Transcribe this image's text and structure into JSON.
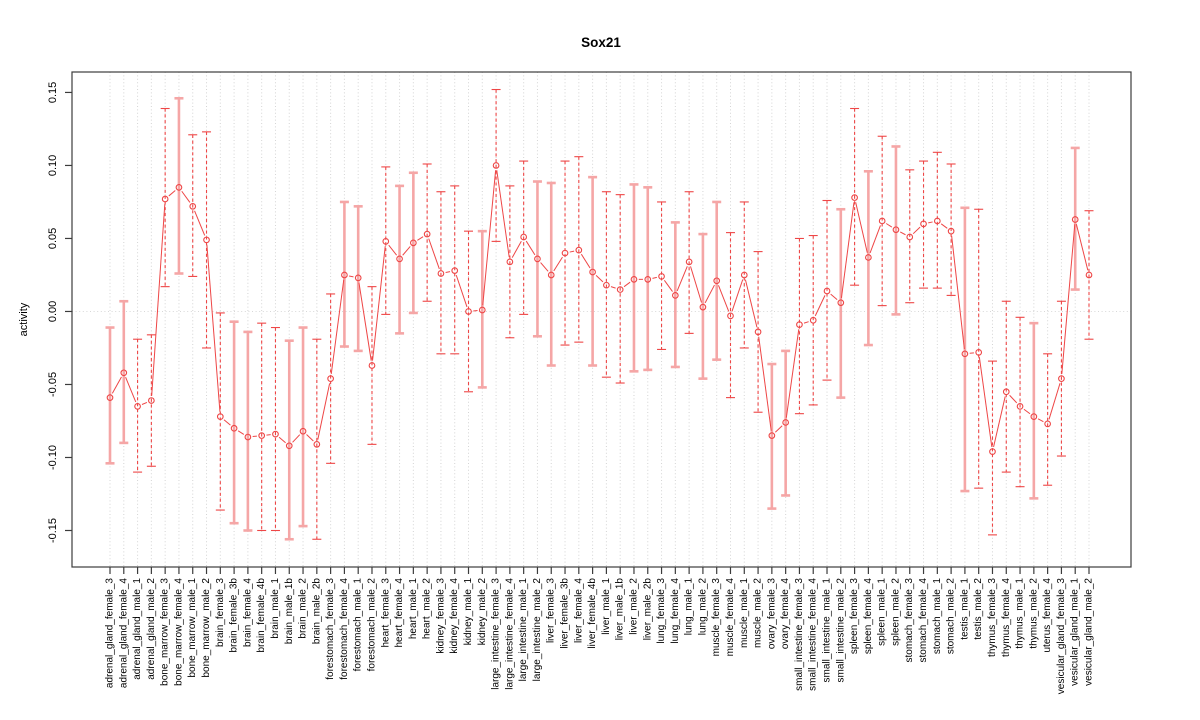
{
  "chart_data": {
    "type": "line",
    "title": "Sox21",
    "xlabel": "",
    "ylabel": "activity",
    "legend": "none",
    "grid": "vertical dotted line per category; dotted horizontal line at y=0",
    "marker": "open-circle",
    "ylim": [
      -0.175,
      0.164
    ],
    "yticks": [
      -0.15,
      -0.1,
      -0.05,
      0.0,
      0.05,
      0.1,
      0.15
    ],
    "ytick_labels": [
      "-0.15",
      "-0.10",
      "-0.05",
      "0.00",
      "0.05",
      "0.10",
      "0.15"
    ],
    "colors": {
      "series_red": "#ee4646",
      "ci_solid_pink": "#f5a6a6",
      "grid_gray": "#d4d4d4",
      "zero_line_gray": "#d8d8d8",
      "axis_black": "#3c3c3c",
      "background": "#ffffff"
    },
    "points": [
      {
        "label": "adrenal_gland_female_3",
        "value": -0.059,
        "ci_low": -0.104,
        "ci_high": -0.011,
        "bar_style": "solid"
      },
      {
        "label": "adrenal_gland_female_4",
        "value": -0.042,
        "ci_low": -0.09,
        "ci_high": 0.007,
        "bar_style": "solid"
      },
      {
        "label": "adrenal_gland_male_1",
        "value": -0.065,
        "ci_low": -0.11,
        "ci_high": -0.019,
        "bar_style": "dashed"
      },
      {
        "label": "adrenal_gland_male_2",
        "value": -0.061,
        "ci_low": -0.106,
        "ci_high": -0.016,
        "bar_style": "dashed"
      },
      {
        "label": "bone_marrow_female_3",
        "value": 0.077,
        "ci_low": 0.017,
        "ci_high": 0.139,
        "bar_style": "dashed"
      },
      {
        "label": "bone_marrow_female_4",
        "value": 0.085,
        "ci_low": 0.026,
        "ci_high": 0.146,
        "bar_style": "solid"
      },
      {
        "label": "bone_marrow_male_1",
        "value": 0.072,
        "ci_low": 0.024,
        "ci_high": 0.121,
        "bar_style": "dashed"
      },
      {
        "label": "bone_marrow_male_2",
        "value": 0.049,
        "ci_low": -0.025,
        "ci_high": 0.123,
        "bar_style": "dashed"
      },
      {
        "label": "brain_female_3",
        "value": -0.072,
        "ci_low": -0.136,
        "ci_high": -0.001,
        "bar_style": "dashed"
      },
      {
        "label": "brain_female_3b",
        "value": -0.08,
        "ci_low": -0.145,
        "ci_high": -0.007,
        "bar_style": "solid"
      },
      {
        "label": "brain_female_4",
        "value": -0.086,
        "ci_low": -0.15,
        "ci_high": -0.014,
        "bar_style": "solid"
      },
      {
        "label": "brain_female_4b",
        "value": -0.085,
        "ci_low": -0.15,
        "ci_high": -0.008,
        "bar_style": "dashed"
      },
      {
        "label": "brain_male_1",
        "value": -0.084,
        "ci_low": -0.15,
        "ci_high": -0.011,
        "bar_style": "dashed"
      },
      {
        "label": "brain_male_1b",
        "value": -0.092,
        "ci_low": -0.156,
        "ci_high": -0.02,
        "bar_style": "solid"
      },
      {
        "label": "brain_male_2",
        "value": -0.082,
        "ci_low": -0.147,
        "ci_high": -0.011,
        "bar_style": "solid"
      },
      {
        "label": "brain_male_2b",
        "value": -0.091,
        "ci_low": -0.156,
        "ci_high": -0.019,
        "bar_style": "dashed"
      },
      {
        "label": "forestomach_female_3",
        "value": -0.046,
        "ci_low": -0.104,
        "ci_high": 0.012,
        "bar_style": "dashed"
      },
      {
        "label": "forestomach_female_4",
        "value": 0.025,
        "ci_low": -0.024,
        "ci_high": 0.075,
        "bar_style": "solid"
      },
      {
        "label": "forestomach_male_1",
        "value": 0.023,
        "ci_low": -0.027,
        "ci_high": 0.072,
        "bar_style": "solid"
      },
      {
        "label": "forestomach_male_2",
        "value": -0.037,
        "ci_low": -0.091,
        "ci_high": 0.017,
        "bar_style": "dashed"
      },
      {
        "label": "heart_female_3",
        "value": 0.048,
        "ci_low": -0.002,
        "ci_high": 0.099,
        "bar_style": "dashed"
      },
      {
        "label": "heart_female_4",
        "value": 0.036,
        "ci_low": -0.015,
        "ci_high": 0.086,
        "bar_style": "solid"
      },
      {
        "label": "heart_male_1",
        "value": 0.047,
        "ci_low": -0.001,
        "ci_high": 0.095,
        "bar_style": "solid"
      },
      {
        "label": "heart_male_2",
        "value": 0.053,
        "ci_low": 0.007,
        "ci_high": 0.101,
        "bar_style": "dashed"
      },
      {
        "label": "kidney_female_3",
        "value": 0.026,
        "ci_low": -0.029,
        "ci_high": 0.082,
        "bar_style": "dashed"
      },
      {
        "label": "kidney_female_4",
        "value": 0.028,
        "ci_low": -0.029,
        "ci_high": 0.086,
        "bar_style": "dashed"
      },
      {
        "label": "kidney_male_1",
        "value": 0.0,
        "ci_low": -0.055,
        "ci_high": 0.055,
        "bar_style": "dashed"
      },
      {
        "label": "kidney_male_2",
        "value": 0.001,
        "ci_low": -0.052,
        "ci_high": 0.055,
        "bar_style": "solid"
      },
      {
        "label": "large_intestine_female_3",
        "value": 0.1,
        "ci_low": 0.048,
        "ci_high": 0.152,
        "bar_style": "dashed"
      },
      {
        "label": "large_intestine_female_4",
        "value": 0.034,
        "ci_low": -0.018,
        "ci_high": 0.086,
        "bar_style": "dashed"
      },
      {
        "label": "large_intestine_male_1",
        "value": 0.051,
        "ci_low": -0.002,
        "ci_high": 0.103,
        "bar_style": "dashed"
      },
      {
        "label": "large_intestine_male_2",
        "value": 0.036,
        "ci_low": -0.017,
        "ci_high": 0.089,
        "bar_style": "solid"
      },
      {
        "label": "liver_female_3",
        "value": 0.025,
        "ci_low": -0.037,
        "ci_high": 0.088,
        "bar_style": "solid"
      },
      {
        "label": "liver_female_3b",
        "value": 0.04,
        "ci_low": -0.023,
        "ci_high": 0.103,
        "bar_style": "dashed"
      },
      {
        "label": "liver_female_4",
        "value": 0.042,
        "ci_low": -0.021,
        "ci_high": 0.106,
        "bar_style": "dashed"
      },
      {
        "label": "liver_female_4b",
        "value": 0.027,
        "ci_low": -0.037,
        "ci_high": 0.092,
        "bar_style": "solid"
      },
      {
        "label": "liver_male_1",
        "value": 0.018,
        "ci_low": -0.045,
        "ci_high": 0.082,
        "bar_style": "dashed"
      },
      {
        "label": "liver_male_1b",
        "value": 0.015,
        "ci_low": -0.049,
        "ci_high": 0.08,
        "bar_style": "dashed"
      },
      {
        "label": "liver_male_2",
        "value": 0.022,
        "ci_low": -0.041,
        "ci_high": 0.087,
        "bar_style": "solid"
      },
      {
        "label": "liver_male_2b",
        "value": 0.022,
        "ci_low": -0.04,
        "ci_high": 0.085,
        "bar_style": "solid"
      },
      {
        "label": "lung_female_3",
        "value": 0.024,
        "ci_low": -0.026,
        "ci_high": 0.075,
        "bar_style": "dashed"
      },
      {
        "label": "lung_female_4",
        "value": 0.011,
        "ci_low": -0.038,
        "ci_high": 0.061,
        "bar_style": "solid"
      },
      {
        "label": "lung_male_1",
        "value": 0.034,
        "ci_low": -0.015,
        "ci_high": 0.082,
        "bar_style": "dashed"
      },
      {
        "label": "lung_male_2",
        "value": 0.003,
        "ci_low": -0.046,
        "ci_high": 0.053,
        "bar_style": "solid"
      },
      {
        "label": "muscle_female_3",
        "value": 0.021,
        "ci_low": -0.033,
        "ci_high": 0.075,
        "bar_style": "solid"
      },
      {
        "label": "muscle_female_4",
        "value": -0.003,
        "ci_low": -0.059,
        "ci_high": 0.054,
        "bar_style": "dashed"
      },
      {
        "label": "muscle_male_1",
        "value": 0.025,
        "ci_low": -0.025,
        "ci_high": 0.075,
        "bar_style": "dashed"
      },
      {
        "label": "muscle_male_2",
        "value": -0.014,
        "ci_low": -0.069,
        "ci_high": 0.041,
        "bar_style": "dashed"
      },
      {
        "label": "ovary_female_3",
        "value": -0.085,
        "ci_low": -0.135,
        "ci_high": -0.036,
        "bar_style": "solid"
      },
      {
        "label": "ovary_female_4",
        "value": -0.076,
        "ci_low": -0.126,
        "ci_high": -0.027,
        "bar_style": "solid"
      },
      {
        "label": "small_intestine_female_3",
        "value": -0.009,
        "ci_low": -0.07,
        "ci_high": 0.05,
        "bar_style": "dashed"
      },
      {
        "label": "small_intestine_female_4",
        "value": -0.006,
        "ci_low": -0.064,
        "ci_high": 0.052,
        "bar_style": "dashed"
      },
      {
        "label": "small_intestine_male_1",
        "value": 0.014,
        "ci_low": -0.047,
        "ci_high": 0.076,
        "bar_style": "dashed"
      },
      {
        "label": "small_intestine_male_2",
        "value": 0.006,
        "ci_low": -0.059,
        "ci_high": 0.07,
        "bar_style": "solid"
      },
      {
        "label": "spleen_female_3",
        "value": 0.078,
        "ci_low": 0.018,
        "ci_high": 0.139,
        "bar_style": "dashed"
      },
      {
        "label": "spleen_female_4",
        "value": 0.037,
        "ci_low": -0.023,
        "ci_high": 0.096,
        "bar_style": "solid"
      },
      {
        "label": "spleen_male_1",
        "value": 0.062,
        "ci_low": 0.004,
        "ci_high": 0.12,
        "bar_style": "dashed"
      },
      {
        "label": "spleen_male_2",
        "value": 0.056,
        "ci_low": -0.002,
        "ci_high": 0.113,
        "bar_style": "solid"
      },
      {
        "label": "stomach_female_3",
        "value": 0.051,
        "ci_low": 0.006,
        "ci_high": 0.097,
        "bar_style": "dashed"
      },
      {
        "label": "stomach_female_4",
        "value": 0.06,
        "ci_low": 0.016,
        "ci_high": 0.103,
        "bar_style": "dashed"
      },
      {
        "label": "stomach_male_1",
        "value": 0.062,
        "ci_low": 0.016,
        "ci_high": 0.109,
        "bar_style": "dashed"
      },
      {
        "label": "stomach_male_2",
        "value": 0.055,
        "ci_low": 0.011,
        "ci_high": 0.101,
        "bar_style": "dashed"
      },
      {
        "label": "testis_male_1",
        "value": -0.029,
        "ci_low": -0.123,
        "ci_high": 0.071,
        "bar_style": "solid"
      },
      {
        "label": "testis_male_2",
        "value": -0.028,
        "ci_low": -0.121,
        "ci_high": 0.07,
        "bar_style": "dashed"
      },
      {
        "label": "thymus_female_3",
        "value": -0.096,
        "ci_low": -0.153,
        "ci_high": -0.034,
        "bar_style": "dashed"
      },
      {
        "label": "thymus_female_4",
        "value": -0.055,
        "ci_low": -0.11,
        "ci_high": 0.007,
        "bar_style": "dashed"
      },
      {
        "label": "thymus_male_1",
        "value": -0.065,
        "ci_low": -0.12,
        "ci_high": -0.004,
        "bar_style": "dashed"
      },
      {
        "label": "thymus_male_2",
        "value": -0.072,
        "ci_low": -0.128,
        "ci_high": -0.008,
        "bar_style": "solid"
      },
      {
        "label": "uterus_female_4",
        "value": -0.077,
        "ci_low": -0.119,
        "ci_high": -0.029,
        "bar_style": "dashed"
      },
      {
        "label": "vesicular_gland_female_3",
        "value": -0.046,
        "ci_low": -0.099,
        "ci_high": 0.007,
        "bar_style": "dashed"
      },
      {
        "label": "vesicular_gland_male_1",
        "value": 0.063,
        "ci_low": 0.015,
        "ci_high": 0.112,
        "bar_style": "solid"
      },
      {
        "label": "vesicular_gland_male_2",
        "value": 0.025,
        "ci_low": -0.019,
        "ci_high": 0.069,
        "bar_style": "dashed"
      }
    ]
  }
}
